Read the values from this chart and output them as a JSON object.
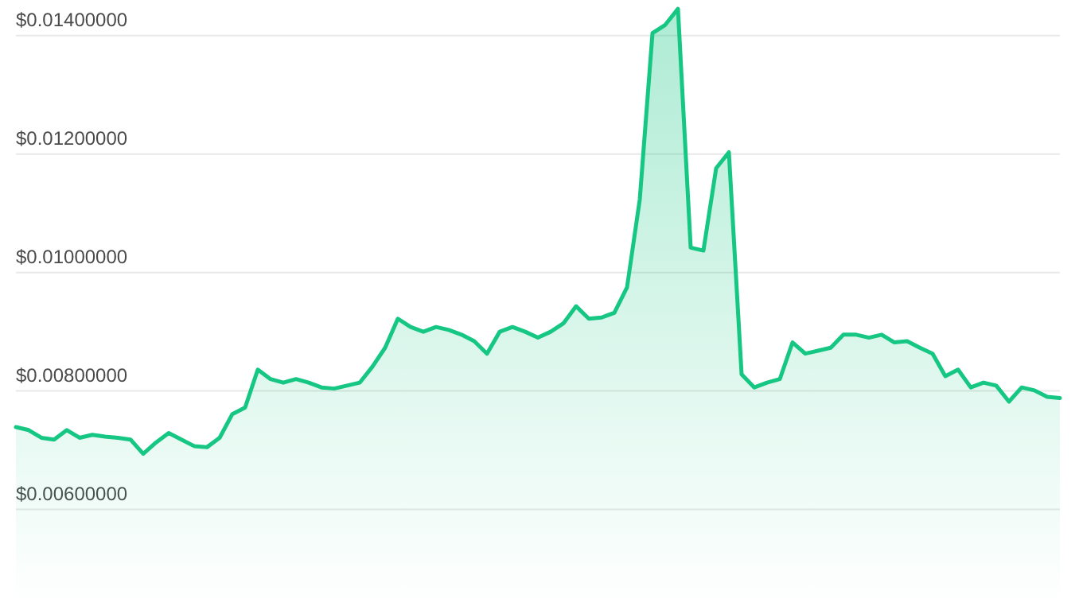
{
  "chart_data": {
    "type": "area",
    "categories": [
      null,
      null,
      null,
      null,
      null,
      null,
      null,
      null,
      null,
      null,
      null,
      null,
      null,
      null,
      null,
      null,
      null,
      null,
      null,
      null,
      null,
      null,
      null,
      null,
      null,
      null,
      null,
      null,
      null,
      null,
      null,
      null,
      null,
      null,
      null,
      null,
      null,
      null,
      null,
      null,
      null,
      null,
      null,
      null,
      null,
      null,
      null,
      null,
      null,
      null,
      null,
      null,
      null,
      null,
      null,
      null,
      null,
      null,
      null,
      null,
      null,
      null,
      null,
      null,
      null,
      null,
      null,
      null,
      null,
      null,
      null,
      null,
      null,
      null,
      null,
      null,
      null,
      null,
      null,
      null,
      null,
      null,
      null
    ],
    "series": [
      {
        "color": "#16c784",
        "values": [
          0.00739,
          0.00734,
          0.00721,
          0.00718,
          0.00734,
          0.00721,
          0.00726,
          0.00723,
          0.00721,
          0.00718,
          0.00694,
          0.00713,
          0.00729,
          0.00718,
          0.00707,
          0.00705,
          0.00721,
          0.00761,
          0.00772,
          0.00836,
          0.0082,
          0.00814,
          0.0082,
          0.00814,
          0.00806,
          0.00804,
          0.00809,
          0.00814,
          0.00841,
          0.00873,
          0.00922,
          0.00908,
          0.009,
          0.00908,
          0.00903,
          0.00895,
          0.00884,
          0.00863,
          0.009,
          0.00908,
          0.009,
          0.0089,
          0.009,
          0.00914,
          0.00943,
          0.00922,
          0.00924,
          0.00932,
          0.00975,
          0.01123,
          0.01404,
          0.01418,
          0.01445,
          0.01042,
          0.01037,
          0.01176,
          0.01203,
          0.00828,
          0.00806,
          0.00814,
          0.0082,
          0.00882,
          0.00863,
          0.00868,
          0.00873,
          0.00895,
          0.00895,
          0.0089,
          0.00895,
          0.00882,
          0.00884,
          0.00873,
          0.00863,
          0.00825,
          0.00836,
          0.00806,
          0.00814,
          0.00809,
          0.00782,
          0.00806,
          0.00801,
          0.0079,
          0.00788
        ]
      }
    ],
    "ylim": [
      0.00437,
      0.0146
    ],
    "yticks": [
      {
        "value": 0.006,
        "label": "$0.00600000"
      },
      {
        "value": 0.008,
        "label": "$0.00800000"
      },
      {
        "value": 0.01,
        "label": "$0.01000000"
      },
      {
        "value": 0.012,
        "label": "$0.01200000"
      },
      {
        "value": 0.014,
        "label": "$0.01400000"
      }
    ],
    "grid": "y"
  }
}
